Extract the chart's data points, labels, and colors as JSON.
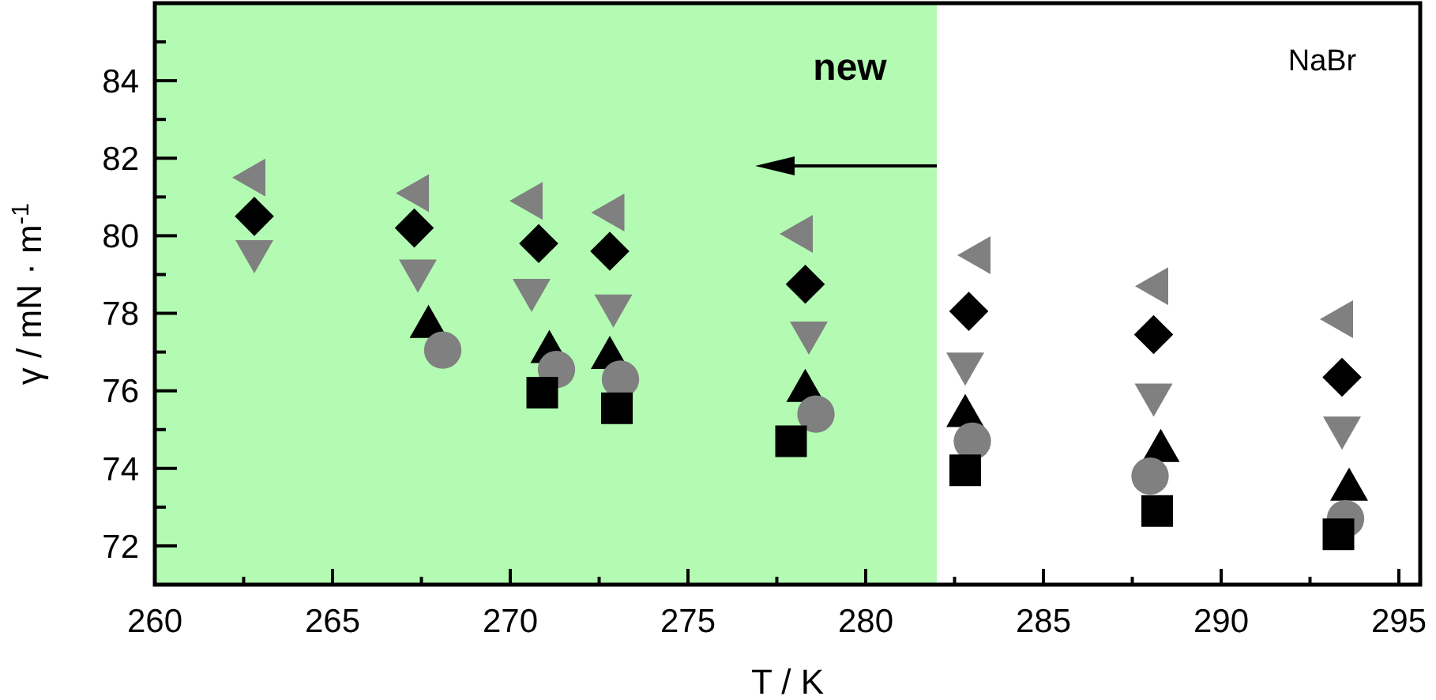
{
  "chart_data": {
    "type": "scatter",
    "xlabel": "T / K",
    "ylabel": "γ / mN · m$^{-1}$",
    "xlim": [
      260,
      295.6
    ],
    "ylim": [
      71,
      86
    ],
    "xticks": [
      260,
      {
        "value": 262.5,
        "label": null
      },
      265,
      {
        "value": 267.5,
        "label": null
      },
      270,
      {
        "value": 272.5,
        "label": null
      },
      275,
      {
        "value": 277.5,
        "label": null
      },
      280,
      {
        "value": 282.5,
        "label": null
      },
      285,
      {
        "value": 287.5,
        "label": null
      },
      290,
      {
        "value": 292.5,
        "label": null
      },
      295
    ],
    "yticks": [
      72,
      {
        "value": 73,
        "label": null
      },
      74,
      {
        "value": 75,
        "label": null
      },
      76,
      {
        "value": 77,
        "label": null
      },
      78,
      {
        "value": 79,
        "label": null
      },
      80,
      {
        "value": 81,
        "label": null
      },
      82,
      {
        "value": 83,
        "label": null
      },
      84,
      {
        "value": 85,
        "label": null
      }
    ],
    "grid": false,
    "bands": [
      {
        "axis": "x",
        "from": 260,
        "to": 282,
        "color": "#b3fbb3"
      }
    ],
    "annotations": [
      "new",
      "NaBr"
    ],
    "series": [
      {
        "color": "#808080",
        "marker": "triangle-left",
        "x": [
          262.8,
          267.4,
          270.6,
          272.9,
          278.2,
          283.2,
          288.2,
          293.4
        ],
        "values": [
          81.5,
          81.1,
          80.9,
          80.6,
          80.05,
          79.5,
          78.7,
          77.85
        ]
      },
      {
        "color": "#000000",
        "marker": "diamond",
        "x": [
          262.8,
          267.3,
          270.8,
          272.8,
          278.3,
          282.9,
          288.1,
          293.4
        ],
        "values": [
          80.5,
          80.2,
          79.8,
          79.6,
          78.75,
          78.05,
          77.45,
          76.35
        ]
      },
      {
        "color": "#808080",
        "marker": "triangle-down",
        "x": [
          262.8,
          267.4,
          270.6,
          272.9,
          278.4,
          282.8,
          288.1,
          293.4
        ],
        "values": [
          79.6,
          79.1,
          78.6,
          78.2,
          77.5,
          76.7,
          75.9,
          75.05
        ]
      },
      {
        "color": "#000000",
        "marker": "triangle",
        "x": [
          267.7,
          271.1,
          272.8,
          278.3,
          282.8,
          288.3,
          293.6
        ],
        "values": [
          77.65,
          77.0,
          76.85,
          76.0,
          75.35,
          74.45,
          73.45
        ]
      },
      {
        "color": "#808080",
        "marker": "circle",
        "x": [
          268.1,
          271.3,
          273.1,
          278.6,
          283.0,
          288.0,
          293.5
        ],
        "values": [
          77.05,
          76.55,
          76.3,
          75.4,
          74.7,
          73.8,
          72.7
        ]
      },
      {
        "color": "#000000",
        "marker": "square",
        "x": [
          270.9,
          273.0,
          277.9,
          282.8,
          288.2,
          293.3
        ],
        "values": [
          75.95,
          75.55,
          74.7,
          73.95,
          72.9,
          72.3
        ]
      }
    ]
  }
}
